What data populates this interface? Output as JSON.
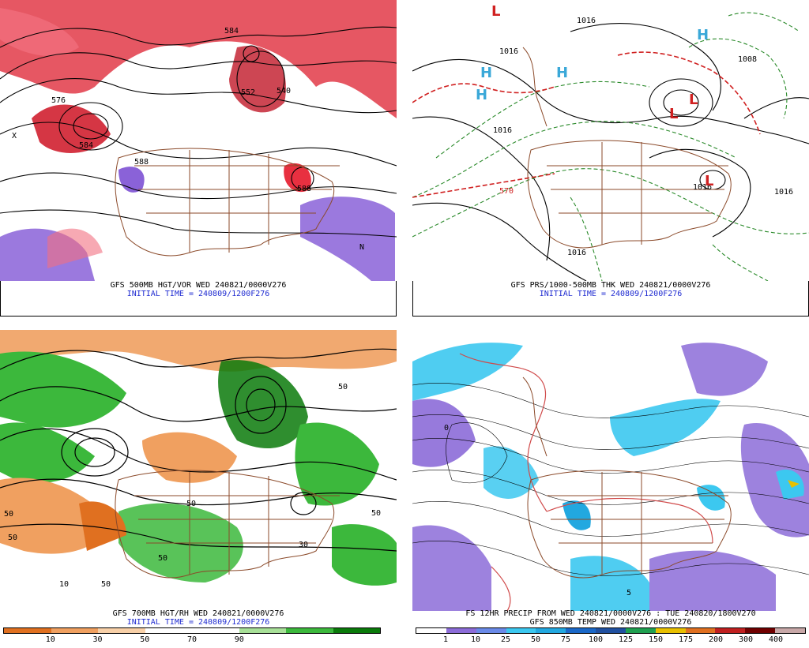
{
  "panels": {
    "top_left": {
      "title": "GFS 500MB HGT/VOR WED 240821/0000V276",
      "subtitle": "INITIAL TIME = 240809/1200F276",
      "labels": [
        "584",
        "552",
        "576",
        "584",
        "588",
        "588",
        "540",
        "N",
        "X"
      ]
    },
    "top_right": {
      "title": "GFS PRS/1000-500MB THK WED 240821/0000V276",
      "subtitle": "INITIAL TIME = 240809/1200F276",
      "labels": [
        "1016",
        "1016",
        "1016",
        "1008",
        "1016",
        "1016",
        "1016",
        "570",
        "H",
        "L"
      ]
    },
    "bottom_left": {
      "title": "GFS 700MB HGT/RH WED 240821/0000V276",
      "subtitle": "INITIAL TIME = 240809/1200F276",
      "labels": [
        "50",
        "50",
        "10",
        "50",
        "50",
        "50",
        "50",
        "30",
        "50"
      ],
      "colorbar": {
        "ticks": [
          "10",
          "30",
          "50",
          "70",
          "90"
        ],
        "colors": [
          "#e07020",
          "#f0a060",
          "#f8d0a8",
          "#ffffff",
          "#ffffff",
          "#a8e098",
          "#3cb83c",
          "#0a7a0a"
        ]
      }
    },
    "bottom_right": {
      "title": "FS 12HR PRECIP FROM WED 240821/0000V276 : TUE 240820/1800V270",
      "subtitle": "GFS 850MB TEMP WED 240821/0000V276",
      "labels": [
        "0",
        "5"
      ],
      "colorbar": {
        "ticks": [
          "1",
          "10",
          "25",
          "50",
          "75",
          "100",
          "125",
          "150",
          "175",
          "200",
          "300",
          "400"
        ],
        "colors": [
          "#ffffff",
          "#8c6cd8",
          "#6a8ae8",
          "#3cc8f0",
          "#22a8e0",
          "#1a68c8",
          "#2050a0",
          "#20a050",
          "#e8c000",
          "#e07020",
          "#c02020",
          "#700000",
          "#c8a8a8"
        ]
      }
    }
  }
}
